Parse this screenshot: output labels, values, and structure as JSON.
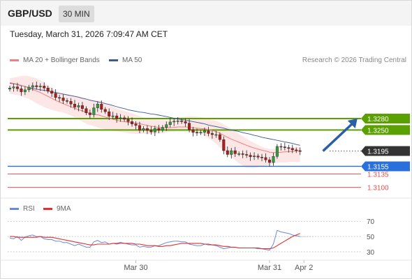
{
  "header": {
    "pair": "GBP/USD",
    "timeframe": "30 MIN"
  },
  "datetime": "Tuesday, March 31, 2026 7:09:47 AM CET",
  "legend": {
    "ma20": {
      "label": "MA 20 + Bollinger Bands",
      "color": "#f08080"
    },
    "ma50": {
      "label": "MA 50",
      "color": "#3c5a96"
    },
    "rsi": {
      "label": "RSI",
      "color": "#6a8ad8"
    },
    "rsi_ma": {
      "label": "9MA",
      "color": "#e03030"
    }
  },
  "credit": "Research © 2026 Trading Central",
  "chart_data": [
    {
      "type": "candlestick",
      "price_range": [
        1.3081,
        1.3415
      ],
      "levels": [
        {
          "name": "resistance",
          "value": 1.328,
          "label": "1.3280",
          "color": "#5aa000",
          "style": "line"
        },
        {
          "name": "resistance",
          "value": 1.325,
          "label": "1.3250",
          "color": "#5aa000",
          "style": "line"
        },
        {
          "name": "current",
          "value": 1.3195,
          "label": "1.3195",
          "color": "#333333",
          "style": "dotted"
        },
        {
          "name": "pivot",
          "value": 1.3155,
          "label": "1.3155",
          "color": "#2a6fdb",
          "style": "line"
        },
        {
          "name": "support",
          "value": 1.3135,
          "label": "1.3135",
          "color": "#e05050",
          "style": "thin"
        },
        {
          "name": "support",
          "value": 1.31,
          "label": "1.3100",
          "color": "#e05050",
          "style": "thin"
        }
      ],
      "forecast_arrow": {
        "from": [
          82,
          1.3195
        ],
        "to": [
          91,
          1.328
        ],
        "color": "#2a5fa8"
      },
      "x_labels": [
        {
          "index": 33,
          "label": "Mar 30"
        },
        {
          "index": 68,
          "label": "Mar 31"
        },
        {
          "index": 77,
          "label": "Apr 2"
        }
      ],
      "last_index": 76,
      "close": [
        1.336,
        1.3363,
        1.3358,
        1.335,
        1.3355,
        1.3362,
        1.3366,
        1.3363,
        1.3365,
        1.336,
        1.3352,
        1.3346,
        1.3335,
        1.3334,
        1.3327,
        1.3325,
        1.3318,
        1.331,
        1.3314,
        1.3306,
        1.3295,
        1.329,
        1.3308,
        1.3318,
        1.3304,
        1.3298,
        1.3286,
        1.3287,
        1.328,
        1.3282,
        1.3278,
        1.3272,
        1.3266,
        1.3262,
        1.325,
        1.3254,
        1.3249,
        1.3245,
        1.3254,
        1.325,
        1.3257,
        1.3264,
        1.3271,
        1.3273,
        1.3274,
        1.3272,
        1.3268,
        1.3251,
        1.3244,
        1.3243,
        1.3244,
        1.3248,
        1.3241,
        1.3238,
        1.3238,
        1.3225,
        1.3196,
        1.3186,
        1.3196,
        1.3188,
        1.3188,
        1.3186,
        1.3184,
        1.318,
        1.3182,
        1.3179,
        1.3178,
        1.3172,
        1.3165,
        1.3181,
        1.3207,
        1.3206,
        1.3204,
        1.3202,
        1.3198,
        1.3196,
        1.3194
      ],
      "ma20": [
        1.3374,
        1.3372,
        1.337,
        1.3367,
        1.3364,
        1.336,
        1.3356,
        1.3352,
        1.3348,
        1.3343,
        1.3338,
        1.3333,
        1.3328,
        1.3323,
        1.3319,
        1.3315,
        1.3311,
        1.3307,
        1.3303,
        1.33,
        1.3296,
        1.3293,
        1.3291,
        1.329,
        1.3287,
        1.3284,
        1.3281,
        1.3278,
        1.3276,
        1.3273,
        1.3272,
        1.327,
        1.3269,
        1.3268,
        1.3267,
        1.3264,
        1.3262,
        1.326,
        1.3258,
        1.3257,
        1.3256,
        1.3256,
        1.3256,
        1.3257,
        1.3258,
        1.3258,
        1.3258,
        1.3257,
        1.3256,
        1.3255,
        1.3254,
        1.3253,
        1.3251,
        1.3249,
        1.3246,
        1.3242,
        1.3236,
        1.3231,
        1.3226,
        1.3222,
        1.3218,
        1.3214,
        1.321,
        1.3206,
        1.3203,
        1.32,
        1.3197,
        1.3195,
        1.3192,
        1.3191,
        1.3191,
        1.3192,
        1.3193,
        1.3193,
        1.3194,
        1.3195,
        1.3196
      ],
      "ma50": [
        1.3372,
        1.3371,
        1.3369,
        1.3366,
        1.3364,
        1.3361,
        1.3359,
        1.3357,
        1.3355,
        1.3354,
        1.3352,
        1.335,
        1.3348,
        1.3346,
        1.3344,
        1.3342,
        1.334,
        1.3338,
        1.3336,
        1.3333,
        1.3331,
        1.3328,
        1.3326,
        1.3324,
        1.3322,
        1.3319,
        1.3317,
        1.3314,
        1.3311,
        1.3308,
        1.3306,
        1.3303,
        1.3301,
        1.3299,
        1.3297,
        1.3296,
        1.3294,
        1.3292,
        1.3291,
        1.3289,
        1.3287,
        1.3285,
        1.3283,
        1.3281,
        1.3279,
        1.3277,
        1.3276,
        1.3274,
        1.3272,
        1.327,
        1.3268,
        1.3266,
        1.3263,
        1.3261,
        1.3259,
        1.3257,
        1.3255,
        1.3252,
        1.325,
        1.3248,
        1.3246,
        1.3243,
        1.3241,
        1.3239,
        1.3236,
        1.3234,
        1.3231,
        1.3229,
        1.3227,
        1.3225,
        1.3223,
        1.3221,
        1.3219,
        1.3217,
        1.3215,
        1.3212,
        1.321
      ],
      "bb_upper": [
        1.3385,
        1.3387,
        1.3389,
        1.3391,
        1.3392,
        1.3391,
        1.3388,
        1.3385,
        1.338,
        1.3374,
        1.3367,
        1.336,
        1.3354,
        1.3349,
        1.3345,
        1.3343,
        1.3342,
        1.334,
        1.3338,
        1.3336,
        1.3333,
        1.3331,
        1.3329,
        1.3328,
        1.3325,
        1.3321,
        1.3316,
        1.3312,
        1.3307,
        1.3303,
        1.33,
        1.3297,
        1.3294,
        1.329,
        1.3286,
        1.3283,
        1.3281,
        1.3279,
        1.3278,
        1.3277,
        1.3276,
        1.3276,
        1.3278,
        1.328,
        1.3283,
        1.3284,
        1.3285,
        1.3286,
        1.3286,
        1.3285,
        1.3284,
        1.3282,
        1.328,
        1.3277,
        1.3274,
        1.327,
        1.3265,
        1.3259,
        1.3253,
        1.3246,
        1.324,
        1.3234,
        1.3227,
        1.3221,
        1.3216,
        1.3211,
        1.3206,
        1.3203,
        1.32,
        1.3201,
        1.3202,
        1.3203,
        1.3204,
        1.3205,
        1.3205,
        1.3206,
        1.3206
      ],
      "bb_lower": [
        1.3345,
        1.3343,
        1.3341,
        1.3339,
        1.3335,
        1.3331,
        1.3326,
        1.332,
        1.3315,
        1.331,
        1.3306,
        1.3303,
        1.33,
        1.3298,
        1.3296,
        1.3292,
        1.3288,
        1.3283,
        1.3277,
        1.3272,
        1.3267,
        1.3263,
        1.326,
        1.3257,
        1.3254,
        1.3252,
        1.325,
        1.3248,
        1.3247,
        1.3245,
        1.3244,
        1.3242,
        1.3241,
        1.324,
        1.324,
        1.324,
        1.324,
        1.324,
        1.324,
        1.3241,
        1.3243,
        1.3244,
        1.3245,
        1.3245,
        1.3246,
        1.3246,
        1.3246,
        1.3245,
        1.3244,
        1.3243,
        1.3241,
        1.3236,
        1.3229,
        1.3222,
        1.3214,
        1.3205,
        1.3197,
        1.3189,
        1.318,
        1.3171,
        1.3163,
        1.3157,
        1.3151,
        1.3151,
        1.3151,
        1.3153,
        1.3155,
        1.3157,
        1.3159,
        1.3162,
        1.3164,
        1.3165,
        1.3165,
        1.3166,
        1.3166,
        1.3166,
        1.3166
      ]
    },
    {
      "type": "line",
      "name": "rsi",
      "range": [
        19,
        83
      ],
      "levels": [
        {
          "value": 70,
          "label": "70"
        },
        {
          "value": 50,
          "label": "50"
        },
        {
          "value": 30,
          "label": "30"
        }
      ],
      "series": [
        {
          "name": "RSI",
          "values": [
            48,
            47,
            50,
            45,
            49,
            51,
            52,
            50,
            50,
            47,
            46,
            46,
            44,
            44,
            42,
            42,
            40,
            38,
            40,
            38,
            36,
            36,
            43,
            45,
            42,
            43,
            40,
            41,
            40,
            41,
            41,
            40,
            39,
            39,
            36,
            37,
            36,
            36,
            38,
            38,
            40,
            42,
            43,
            44,
            44,
            43,
            43,
            40,
            39,
            38,
            38,
            40,
            39,
            39,
            38,
            36,
            34,
            35,
            36,
            36,
            35,
            35,
            35,
            35,
            35,
            34,
            34,
            33,
            32,
            40,
            58,
            56,
            55,
            54,
            52,
            51,
            50
          ]
        },
        {
          "name": "9MA",
          "values": [
            50,
            50,
            49,
            49,
            49,
            49,
            49,
            49,
            50,
            49,
            49,
            49,
            48,
            47,
            46,
            45,
            44,
            43,
            42,
            41,
            40,
            39,
            39,
            40,
            40,
            40,
            40,
            41,
            41,
            42,
            41,
            41,
            41,
            40,
            40,
            39,
            38,
            38,
            38,
            37,
            37,
            38,
            38,
            39,
            40,
            41,
            41,
            41,
            41,
            41,
            41,
            40,
            40,
            39,
            39,
            38,
            37,
            37,
            36,
            36,
            35,
            35,
            35,
            35,
            35,
            35,
            34,
            34,
            34,
            35,
            38,
            41,
            44,
            47,
            50,
            52,
            54
          ]
        }
      ]
    }
  ]
}
